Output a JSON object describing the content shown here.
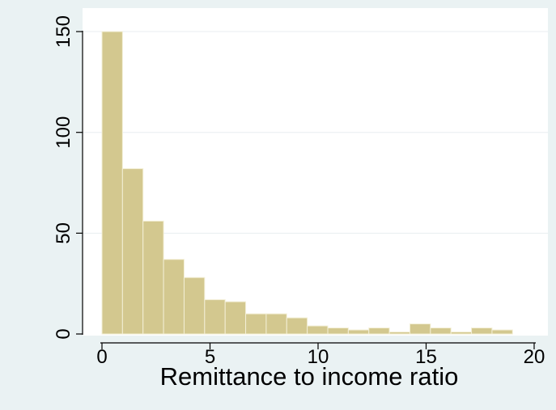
{
  "chart_data": {
    "type": "bar",
    "subtype": "histogram",
    "xlabel": "Remittance to income ratio",
    "ylabel": "",
    "xlim": [
      -0.8,
      20.3
    ],
    "ylim": [
      0,
      150
    ],
    "xticks": [
      0,
      5,
      10,
      15,
      20
    ],
    "yticks": [
      0,
      50,
      100,
      150
    ],
    "grid": true,
    "bin_width": 0.95,
    "bins_start": [
      0,
      0.95,
      1.9,
      2.85,
      3.8,
      4.75,
      5.7,
      6.65,
      7.6,
      8.55,
      9.5,
      10.45,
      11.4,
      12.35,
      13.3,
      14.25,
      15.2,
      16.15,
      17.1,
      18.05
    ],
    "values": [
      150,
      82,
      56,
      37,
      28,
      17,
      16,
      10,
      10,
      8,
      4,
      3,
      2,
      3,
      1,
      5,
      3,
      1,
      3,
      2
    ],
    "colors": {
      "bar_fill": "#d3c88f",
      "bar_stroke": "#f3efd6",
      "plot_bg": "#ffffff",
      "outer_bg": "#eaf2f3",
      "grid": "#e8eef0",
      "axis": "#000000"
    }
  }
}
